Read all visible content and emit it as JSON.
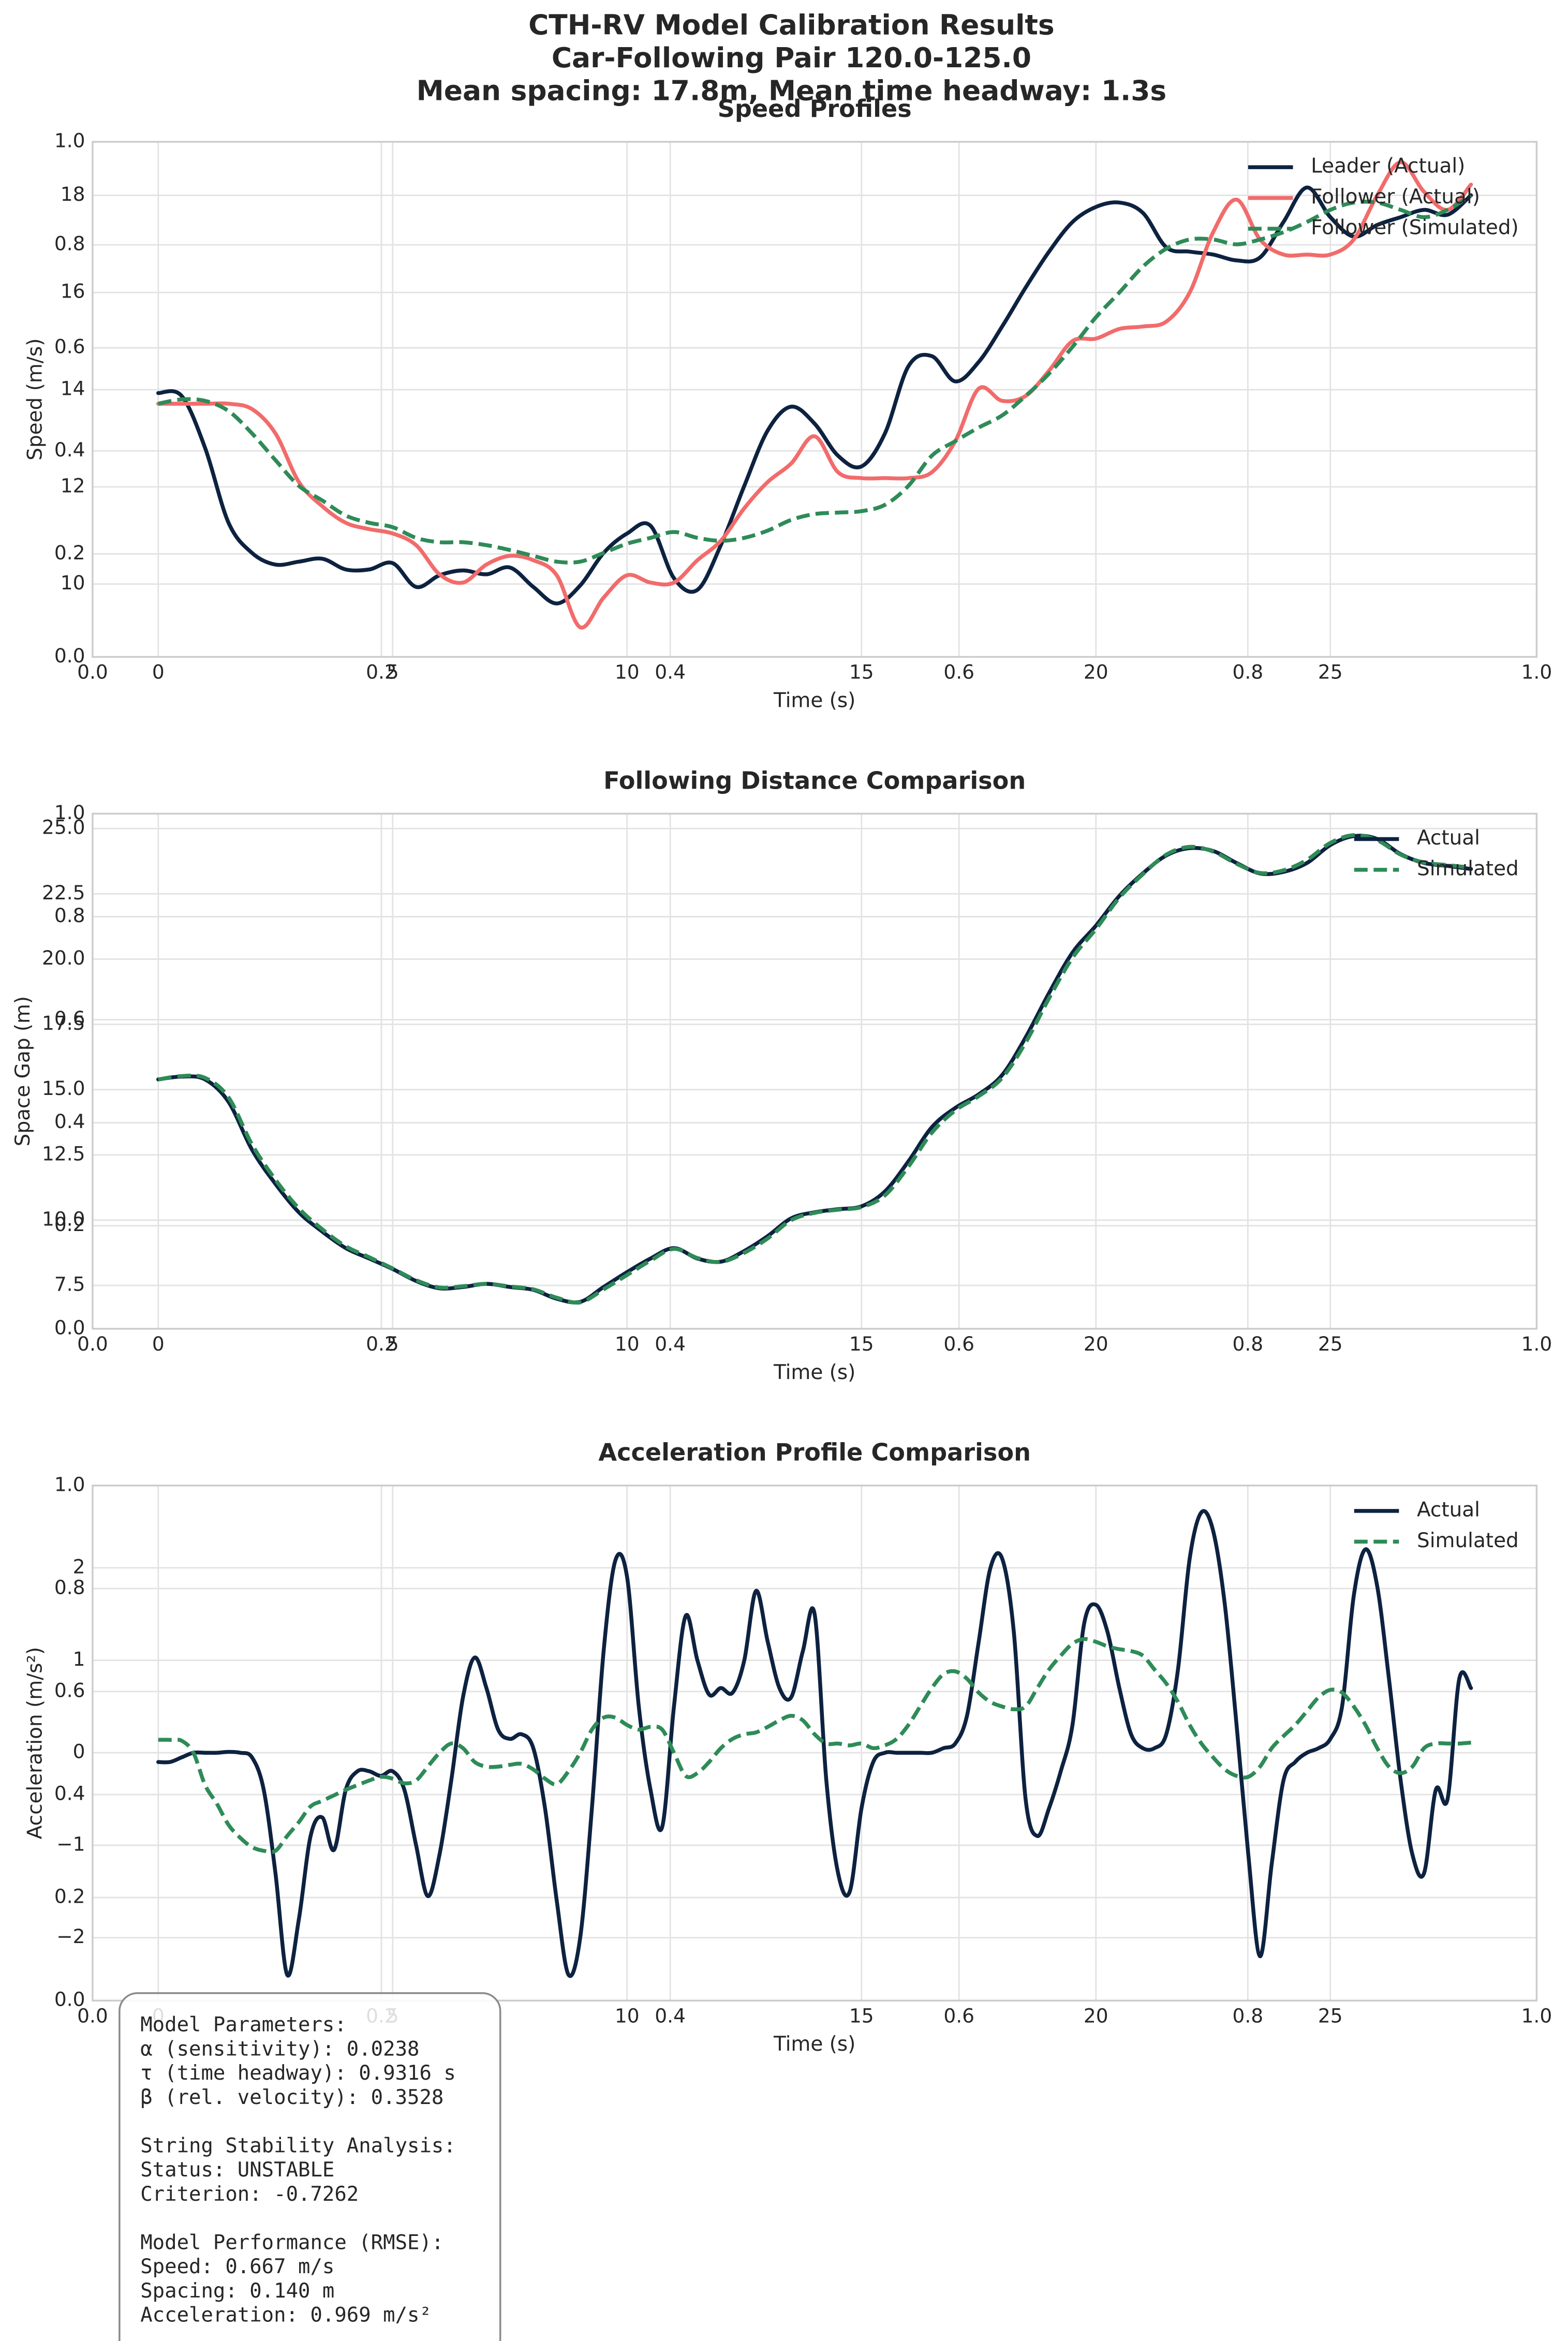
{
  "title": [
    "CTH-RV Model Calibration Results",
    "Car-Following Pair 120.0-125.0",
    "Mean spacing: 17.8m, Mean time headway: 1.3s"
  ],
  "chart_data": [
    {
      "type": "line",
      "title": "Speed Profiles",
      "xlabel": "Time (s)",
      "ylabel": "Speed (m/s)",
      "x": [
        0,
        0.5,
        1,
        1.5,
        2,
        2.5,
        3,
        3.5,
        4,
        4.5,
        5,
        5.5,
        6,
        6.5,
        7,
        7.5,
        8,
        8.5,
        9,
        9.5,
        10,
        10.5,
        11,
        11.5,
        12,
        12.5,
        13,
        13.5,
        14,
        14.5,
        15,
        15.5,
        16,
        16.5,
        17,
        17.5,
        18,
        18.5,
        19,
        19.5,
        20,
        20.5,
        21,
        21.5,
        22,
        22.5,
        23,
        23.5,
        24,
        24.5,
        25,
        25.5,
        26,
        26.5,
        27,
        27.5,
        28
      ],
      "series": [
        {
          "name": "Leader (Actual)",
          "color": "#0d2240",
          "linestyle": "solid",
          "values": [
            13.93,
            13.87,
            12.8,
            11.26,
            10.64,
            10.4,
            10.46,
            10.52,
            10.3,
            10.3,
            10.43,
            9.94,
            10.18,
            10.28,
            10.2,
            10.34,
            9.94,
            9.6,
            9.97,
            10.64,
            11.04,
            11.2,
            10.12,
            9.88,
            10.8,
            12.02,
            13.16,
            13.65,
            13.3,
            12.64,
            12.42,
            13.1,
            14.48,
            14.69,
            14.17,
            14.57,
            15.3,
            16.1,
            16.84,
            17.45,
            17.76,
            17.85,
            17.64,
            16.93,
            16.84,
            16.78,
            16.66,
            16.72,
            17.45,
            18.16,
            17.55,
            17.15,
            17.39,
            17.55,
            17.7,
            17.6,
            18.0
          ]
        },
        {
          "name": "Follower (Actual)",
          "color": "#f26b6b",
          "linestyle": "solid",
          "values": [
            13.71,
            13.71,
            13.71,
            13.71,
            13.6,
            13.1,
            12.1,
            11.6,
            11.26,
            11.13,
            11.04,
            10.8,
            10.2,
            10.03,
            10.4,
            10.58,
            10.49,
            10.18,
            9.11,
            9.72,
            10.18,
            10.03,
            10.03,
            10.49,
            10.89,
            11.56,
            12.1,
            12.48,
            13.04,
            12.3,
            12.18,
            12.18,
            12.18,
            12.3,
            12.94,
            14.02,
            13.77,
            13.87,
            14.39,
            15.0,
            15.05,
            15.25,
            15.3,
            15.4,
            16.0,
            17.24,
            17.91,
            17.09,
            16.78,
            16.78,
            16.78,
            17.09,
            18.0,
            18.68,
            18.07,
            17.7,
            18.22
          ]
        },
        {
          "name": "Follower (Simulated)",
          "color": "#2e8b57",
          "linestyle": "dashed",
          "values": [
            13.71,
            13.8,
            13.77,
            13.56,
            13.1,
            12.55,
            12.02,
            11.72,
            11.41,
            11.26,
            11.17,
            10.95,
            10.86,
            10.86,
            10.8,
            10.7,
            10.58,
            10.46,
            10.46,
            10.64,
            10.83,
            10.95,
            11.07,
            10.95,
            10.89,
            10.95,
            11.1,
            11.32,
            11.44,
            11.47,
            11.5,
            11.63,
            12.02,
            12.64,
            12.94,
            13.22,
            13.47,
            13.87,
            14.33,
            14.88,
            15.49,
            16.0,
            16.53,
            16.9,
            17.09,
            17.09,
            16.99,
            17.09,
            17.24,
            17.45,
            17.7,
            17.85,
            17.85,
            17.7,
            17.55,
            17.7,
            18.0
          ]
        }
      ],
      "xlim": [
        -1.4,
        29.4
      ],
      "ylim": [
        8.5,
        19.1
      ],
      "xticks": [
        0,
        5,
        10,
        15,
        20,
        25
      ],
      "yticks": [
        10,
        12,
        14,
        16,
        18
      ],
      "grid": true,
      "legend": "upper right",
      "overlay_axes": {
        "xlim": [
          0,
          1
        ],
        "ylim": [
          0,
          1
        ],
        "xticks": [
          {
            "value": 0,
            "label": "0.0"
          },
          0.2,
          0.4,
          0.6,
          0.8,
          {
            "value": 1,
            "label": "1.0"
          }
        ],
        "yticks": [
          {
            "value": 0,
            "label": "0.0"
          },
          0.2,
          0.4,
          0.6,
          0.8,
          {
            "value": 1,
            "label": "1.0"
          }
        ]
      }
    },
    {
      "type": "line",
      "title": "Following Distance Comparison",
      "xlabel": "Time (s)",
      "ylabel": "Space Gap (m)",
      "x": [
        0,
        0.5,
        1,
        1.5,
        2,
        2.5,
        3,
        3.5,
        4,
        4.5,
        5,
        5.5,
        6,
        6.5,
        7,
        7.5,
        8,
        8.5,
        9,
        9.5,
        10,
        10.5,
        11,
        11.5,
        12,
        12.5,
        13,
        13.5,
        14,
        14.5,
        15,
        15.5,
        16,
        16.5,
        17,
        17.5,
        18,
        18.5,
        19,
        19.5,
        20,
        20.5,
        21,
        21.5,
        22,
        22.5,
        23,
        23.5,
        24,
        24.5,
        25,
        25.5,
        26,
        26.5,
        27,
        27.5,
        28
      ],
      "series": [
        {
          "name": "Actual",
          "color": "#0d2240",
          "linestyle": "solid",
          "values": [
            15.39,
            15.5,
            15.39,
            14.53,
            12.7,
            11.39,
            10.3,
            9.56,
            8.93,
            8.53,
            8.13,
            7.67,
            7.39,
            7.44,
            7.56,
            7.44,
            7.33,
            6.99,
            6.87,
            7.44,
            8.01,
            8.53,
            8.93,
            8.53,
            8.41,
            8.82,
            9.39,
            10.07,
            10.3,
            10.42,
            10.53,
            11.1,
            12.25,
            13.56,
            14.3,
            14.82,
            15.56,
            17.0,
            18.7,
            20.25,
            21.28,
            22.42,
            23.28,
            23.97,
            24.25,
            24.14,
            23.68,
            23.28,
            23.34,
            23.68,
            24.37,
            24.71,
            24.6,
            24.02,
            23.68,
            23.57,
            23.45
          ]
        },
        {
          "name": "Simulated",
          "color": "#2e8b57",
          "linestyle": "dashed",
          "values": [
            15.39,
            15.52,
            15.45,
            14.7,
            12.9,
            11.55,
            10.45,
            9.65,
            9.0,
            8.58,
            8.15,
            7.7,
            7.42,
            7.47,
            7.56,
            7.46,
            7.35,
            7.03,
            6.85,
            7.35,
            7.9,
            8.45,
            8.9,
            8.55,
            8.4,
            8.75,
            9.3,
            10.0,
            10.28,
            10.4,
            10.5,
            10.95,
            12.05,
            13.35,
            14.2,
            14.75,
            15.45,
            16.8,
            18.5,
            20.05,
            21.15,
            22.35,
            23.25,
            24.0,
            24.3,
            24.12,
            23.65,
            23.3,
            23.4,
            23.8,
            24.45,
            24.75,
            24.55,
            24.0,
            23.7,
            23.6,
            23.5
          ]
        }
      ],
      "xlim": [
        -1.4,
        29.4
      ],
      "ylim": [
        5.84,
        25.57
      ],
      "xticks": [
        0,
        5,
        10,
        15,
        20,
        25
      ],
      "yticks": [
        7.5,
        {
          "value": 10,
          "label": "10.0"
        },
        12.5,
        {
          "value": 15,
          "label": "15.0"
        },
        17.5,
        {
          "value": 20,
          "label": "20.0"
        },
        22.5,
        {
          "value": 25,
          "label": "25.0"
        }
      ],
      "grid": true,
      "legend": "upper right",
      "overlay_axes": {
        "xlim": [
          0,
          1
        ],
        "ylim": [
          0,
          1
        ],
        "xticks": [
          {
            "value": 0,
            "label": "0.0"
          },
          0.2,
          0.4,
          0.6,
          0.8,
          {
            "value": 1,
            "label": "1.0"
          }
        ],
        "yticks": [
          {
            "value": 0,
            "label": "0.0"
          },
          0.2,
          0.4,
          0.6,
          0.8,
          {
            "value": 1,
            "label": "1.0"
          }
        ]
      }
    },
    {
      "type": "line",
      "title": "Acceleration Profile Comparison",
      "xlabel": "Time (s)",
      "ylabel": "Acceleration (m/s²)",
      "x": [
        0,
        0.25,
        0.5,
        0.75,
        1,
        1.25,
        1.5,
        1.75,
        2,
        2.25,
        2.5,
        2.75,
        3,
        3.25,
        3.5,
        3.75,
        4,
        4.25,
        4.5,
        4.75,
        5,
        5.25,
        5.5,
        5.75,
        6,
        6.25,
        6.5,
        6.75,
        7,
        7.25,
        7.5,
        7.75,
        8,
        8.25,
        8.5,
        8.75,
        9,
        9.25,
        9.5,
        9.75,
        10,
        10.25,
        10.5,
        10.75,
        11,
        11.25,
        11.5,
        11.75,
        12,
        12.25,
        12.5,
        12.75,
        13,
        13.25,
        13.5,
        13.75,
        14,
        14.25,
        14.5,
        14.75,
        15,
        15.25,
        15.5,
        15.75,
        16,
        16.25,
        16.5,
        16.75,
        17,
        17.25,
        17.5,
        17.75,
        18,
        18.25,
        18.5,
        18.75,
        19,
        19.25,
        19.5,
        19.75,
        20,
        20.25,
        20.5,
        20.75,
        21,
        21.25,
        21.5,
        21.75,
        22,
        22.25,
        22.5,
        22.75,
        23,
        23.25,
        23.5,
        23.75,
        24,
        24.25,
        24.5,
        24.75,
        25,
        25.25,
        25.5,
        25.75,
        26,
        26.25,
        26.5,
        26.75,
        27,
        27.25,
        27.5,
        27.75,
        28
      ],
      "series": [
        {
          "name": "Actual",
          "color": "#0d2240",
          "linestyle": "solid",
          "values": [
            -0.1,
            -0.1,
            -0.05,
            0,
            0,
            0,
            0.01,
            0,
            -0.05,
            -0.4,
            -1.3,
            -2.4,
            -1.8,
            -0.9,
            -0.7,
            -1.05,
            -0.4,
            -0.2,
            -0.2,
            -0.25,
            -0.2,
            -0.4,
            -1.0,
            -1.55,
            -1.1,
            -0.3,
            0.6,
            1.03,
            0.7,
            0.25,
            0.15,
            0.2,
            0.05,
            -0.6,
            -1.6,
            -2.4,
            -2.0,
            -0.6,
            1.1,
            2.08,
            1.9,
            0.5,
            -0.4,
            -0.8,
            0.5,
            1.48,
            1.0,
            0.63,
            0.7,
            0.65,
            1.0,
            1.75,
            1.2,
            0.7,
            0.6,
            1.1,
            1.5,
            -0.3,
            -1.3,
            -1.5,
            -0.6,
            -0.1,
            0,
            0,
            0,
            0,
            0,
            0.05,
            0.1,
            0.4,
            1.2,
            2.0,
            2.1,
            1.3,
            -0.5,
            -0.9,
            -0.6,
            -0.2,
            0.3,
            1.4,
            1.6,
            1.3,
            0.7,
            0.2,
            0.05,
            0.05,
            0.2,
            0.9,
            2.1,
            2.6,
            2.4,
            1.6,
            0.3,
            -1.1,
            -2.2,
            -1.2,
            -0.3,
            -0.1,
            0,
            0.05,
            0.15,
            0.5,
            1.7,
            2.2,
            1.8,
            0.8,
            -0.3,
            -1.1,
            -1.3,
            -0.4,
            -0.5,
            0.8,
            0.7
          ]
        },
        {
          "name": "Simulated",
          "color": "#2e8b57",
          "linestyle": "dashed",
          "values": [
            0.14,
            0.14,
            0.13,
            0,
            -0.35,
            -0.55,
            -0.78,
            -0.92,
            -1.02,
            -1.06,
            -1.06,
            -0.9,
            -0.75,
            -0.58,
            -0.52,
            -0.46,
            -0.4,
            -0.35,
            -0.3,
            -0.26,
            -0.28,
            -0.33,
            -0.3,
            -0.15,
            0,
            0.1,
            0.05,
            -0.1,
            -0.15,
            -0.15,
            -0.13,
            -0.12,
            -0.18,
            -0.28,
            -0.34,
            -0.2,
            0,
            0.25,
            0.38,
            0.38,
            0.3,
            0.25,
            0.28,
            0.25,
            0,
            -0.25,
            -0.22,
            -0.1,
            0.05,
            0.15,
            0.2,
            0.22,
            0.28,
            0.35,
            0.4,
            0.35,
            0.2,
            0.1,
            0.1,
            0.08,
            0.1,
            0.05,
            0.08,
            0.15,
            0.3,
            0.5,
            0.7,
            0.85,
            0.88,
            0.8,
            0.65,
            0.55,
            0.5,
            0.47,
            0.5,
            0.7,
            0.9,
            1.05,
            1.18,
            1.23,
            1.2,
            1.15,
            1.12,
            1.1,
            1.05,
            0.9,
            0.75,
            0.55,
            0.3,
            0.1,
            -0.05,
            -0.18,
            -0.25,
            -0.26,
            -0.15,
            0.05,
            0.18,
            0.3,
            0.45,
            0.6,
            0.68,
            0.65,
            0.5,
            0.3,
            0.05,
            -0.15,
            -0.22,
            -0.15,
            0.05,
            0.1,
            0.1,
            0.1,
            0.11
          ]
        }
      ],
      "xlim": [
        -1.4,
        29.4
      ],
      "ylim": [
        -2.68,
        2.89
      ],
      "xticks": [
        0,
        5,
        10,
        15,
        20,
        25
      ],
      "yticks": [
        {
          "value": -2,
          "label": "−2"
        },
        {
          "value": -1,
          "label": "−1"
        },
        0,
        1,
        2
      ],
      "grid": true,
      "legend": "upper right",
      "overlay_axes": {
        "xlim": [
          0,
          1
        ],
        "ylim": [
          0,
          1
        ],
        "xticks": [
          {
            "value": 0,
            "label": "0.0"
          },
          0.2,
          0.4,
          0.6,
          0.8,
          {
            "value": 1,
            "label": "1.0"
          }
        ],
        "yticks": [
          {
            "value": 0,
            "label": "0.0"
          },
          0.2,
          0.4,
          0.6,
          0.8,
          {
            "value": 1,
            "label": "1.0"
          }
        ]
      }
    }
  ],
  "text_box": [
    [
      "Model Parameters:",
      "α (sensitivity): 0.0238",
      "τ (time headway): 0.9316 s",
      "β (rel. velocity): 0.3528"
    ],
    [
      "String Stability Analysis:",
      "Status: UNSTABLE",
      "Criterion: -0.7262"
    ],
    [
      "Model Performance (RMSE):",
      "Speed: 0.667 m/s",
      "Spacing: 0.140 m",
      "Acceleration: 0.969 m/s²"
    ]
  ]
}
